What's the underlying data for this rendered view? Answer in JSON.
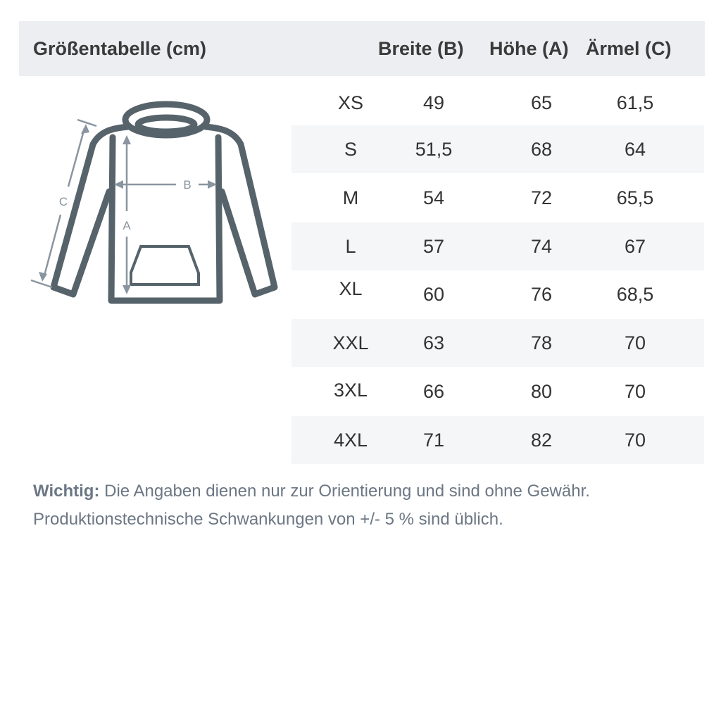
{
  "header": {
    "title": "Größentabelle (cm)",
    "columns": [
      "Breite (B)",
      "Höhe (A)",
      "Ärmel (C)"
    ]
  },
  "diagram": {
    "labels": {
      "width": "B",
      "height": "A",
      "sleeve": "C"
    },
    "colors": {
      "garment": "#56636b",
      "measure": "#8a95a0"
    }
  },
  "rows": [
    {
      "size": "XS",
      "breite": "49",
      "hoehe": "65",
      "aermel": "61,5"
    },
    {
      "size": "S",
      "breite": "51,5",
      "hoehe": "68",
      "aermel": "64"
    },
    {
      "size": "M",
      "breite": "54",
      "hoehe": "72",
      "aermel": "65,5"
    },
    {
      "size": "L",
      "breite": "57",
      "hoehe": "74",
      "aermel": "67"
    },
    {
      "size": "XL",
      "breite": "60",
      "hoehe": "76",
      "aermel": "68,5"
    },
    {
      "size": "XXL",
      "breite": "63",
      "hoehe": "78",
      "aermel": "70"
    },
    {
      "size": "3XL",
      "breite": "66",
      "hoehe": "80",
      "aermel": "70"
    },
    {
      "size": "4XL",
      "breite": "71",
      "hoehe": "82",
      "aermel": "70"
    }
  ],
  "note": {
    "label": "Wichtig:",
    "line1": "Die Angaben dienen nur zur Orientierung und sind ohne Gewähr.",
    "line2": "Produktionstechnische Schwankungen von +/- 5 % sind üblich."
  }
}
